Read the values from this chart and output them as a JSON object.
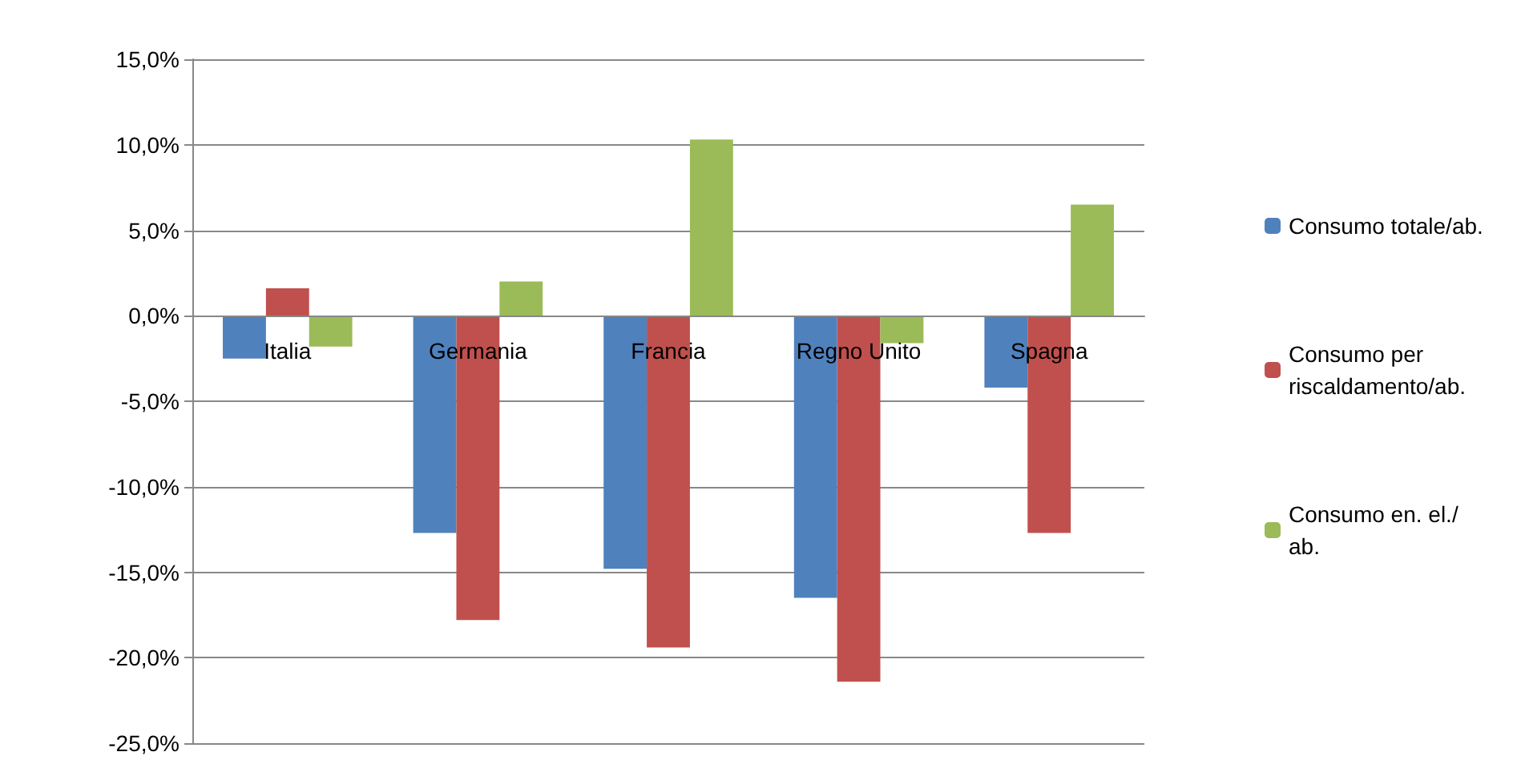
{
  "chart_data": {
    "type": "bar",
    "categories": [
      "Italia",
      "Germania",
      "Francia",
      "Regno Unito",
      "Spagna"
    ],
    "series": [
      {
        "name": "Consumo totale/ab.",
        "color": "#4f81bd",
        "values": [
          -2.5,
          -12.7,
          -14.8,
          -16.5,
          -4.2
        ]
      },
      {
        "name": "Consumo per riscaldamento/ab.",
        "color": "#c0504d",
        "values": [
          1.6,
          -17.8,
          -19.4,
          -21.4,
          -12.7
        ]
      },
      {
        "name": "Consumo en. el./ab.",
        "color": "#9bbb59",
        "values": [
          -1.8,
          2.0,
          10.3,
          -1.6,
          6.5
        ]
      }
    ],
    "ylim": [
      -25,
      15
    ],
    "yticks": [
      {
        "value": -25,
        "label": "-25,0%"
      },
      {
        "value": -20,
        "label": "-20,0%"
      },
      {
        "value": -15,
        "label": "-15,0%"
      },
      {
        "value": -10,
        "label": "-10,0%"
      },
      {
        "value": -5,
        "label": "-5,0%"
      },
      {
        "value": 0,
        "label": "0,0%"
      },
      {
        "value": 5,
        "label": "5,0%"
      },
      {
        "value": 10,
        "label": "10,0%"
      },
      {
        "value": 15,
        "label": "15,0%"
      }
    ],
    "grid": "y",
    "legend": "right"
  }
}
